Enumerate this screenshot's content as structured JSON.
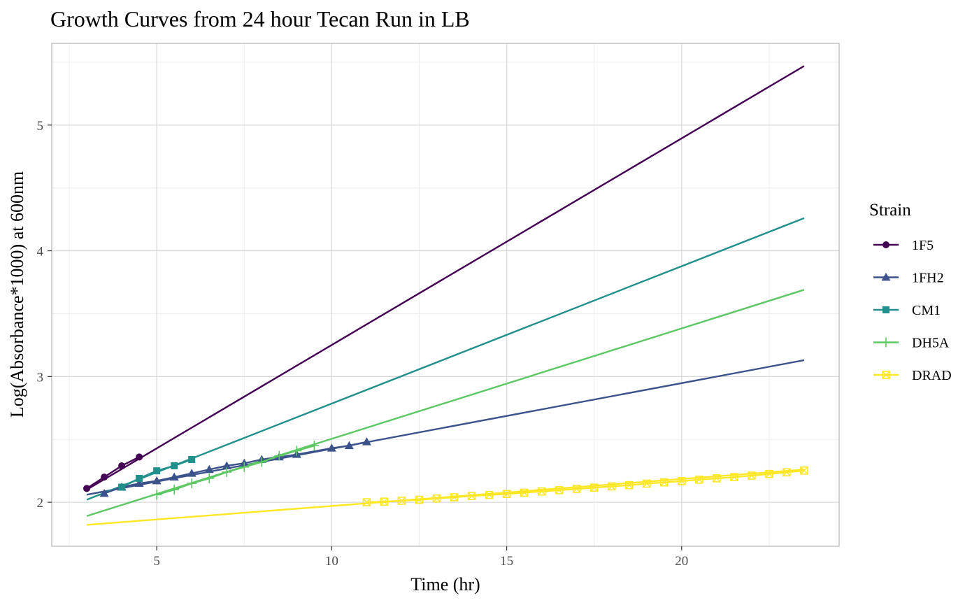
{
  "chart_data": {
    "type": "line",
    "title": "Growth Curves from 24 hour Tecan Run in LB",
    "xlabel": "Time (hr)",
    "ylabel": "Log(Absorbance*1000) at 600nm",
    "xlim": [
      2,
      24.5
    ],
    "ylim": [
      1.65,
      5.65
    ],
    "x_ticks": [
      5,
      10,
      15,
      20
    ],
    "y_ticks": [
      2,
      3,
      4,
      5
    ],
    "x_minor_ticks": [
      2.5,
      7.5,
      12.5,
      17.5,
      22.5
    ],
    "y_minor_ticks": [
      2.5,
      3.5,
      4.5,
      5.5
    ],
    "grid": true,
    "legend": {
      "title": "Strain",
      "position": "right"
    },
    "series": [
      {
        "name": "1F5",
        "color": "#440154",
        "marker": "circle",
        "fit": {
          "x": [
            3,
            23.5
          ],
          "y": [
            2.1,
            5.47
          ]
        },
        "points": {
          "x": [
            3,
            3.5,
            4,
            4.5
          ],
          "y": [
            2.11,
            2.2,
            2.29,
            2.36
          ]
        }
      },
      {
        "name": "1FH2",
        "color": "#3b528b",
        "marker": "triangle",
        "fit": {
          "x": [
            3,
            23.5
          ],
          "y": [
            2.06,
            3.13
          ]
        },
        "points": {
          "x": [
            3.5,
            4,
            4.5,
            5,
            5.5,
            6,
            6.5,
            7,
            7.5,
            8,
            8.5,
            9,
            10,
            10.5,
            11
          ],
          "y": [
            2.07,
            2.12,
            2.15,
            2.17,
            2.2,
            2.23,
            2.26,
            2.29,
            2.31,
            2.34,
            2.36,
            2.38,
            2.43,
            2.45,
            2.48
          ]
        }
      },
      {
        "name": "CM1",
        "color": "#21908c",
        "marker": "square",
        "fit": {
          "x": [
            3,
            23.5
          ],
          "y": [
            2.02,
            4.26
          ]
        },
        "points": {
          "x": [
            4,
            4.5,
            5,
            5.5,
            6
          ],
          "y": [
            2.12,
            2.19,
            2.25,
            2.29,
            2.34
          ]
        }
      },
      {
        "name": "DH5A",
        "color": "#5dc863",
        "marker": "plus",
        "fit": {
          "x": [
            3,
            23.5
          ],
          "y": [
            1.89,
            3.69
          ]
        },
        "points": {
          "x": [
            5,
            5.5,
            6,
            6.5,
            7,
            7.5,
            8,
            8.5,
            9,
            9.5
          ],
          "y": [
            2.06,
            2.1,
            2.15,
            2.19,
            2.24,
            2.28,
            2.32,
            2.37,
            2.41,
            2.45
          ]
        }
      },
      {
        "name": "DRAD",
        "color": "#fde725",
        "marker": "square-x",
        "fit": {
          "x": [
            3,
            23.5
          ],
          "y": [
            1.82,
            2.26
          ]
        },
        "points": {
          "x": [
            11,
            11.5,
            12,
            12.5,
            13,
            13.5,
            14,
            14.5,
            15,
            15.5,
            16,
            16.5,
            17,
            17.5,
            18,
            18.5,
            19,
            19.5,
            20,
            20.5,
            21,
            21.5,
            22,
            22.5,
            23,
            23.5
          ],
          "y": [
            2.0,
            2.005,
            2.012,
            2.02,
            2.03,
            2.04,
            2.05,
            2.058,
            2.066,
            2.076,
            2.086,
            2.096,
            2.106,
            2.116,
            2.126,
            2.136,
            2.148,
            2.158,
            2.168,
            2.18,
            2.19,
            2.2,
            2.212,
            2.225,
            2.238,
            2.252
          ]
        }
      }
    ]
  }
}
